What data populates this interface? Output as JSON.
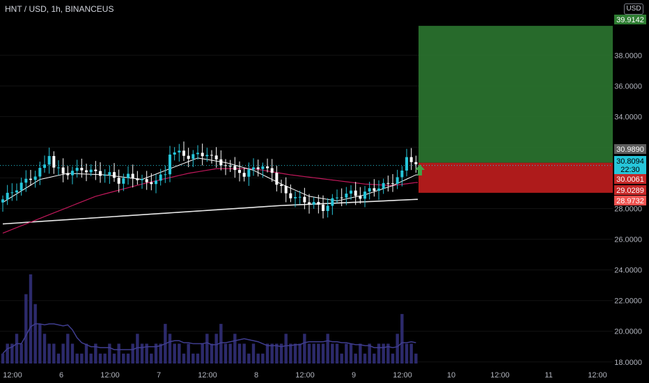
{
  "header": {
    "symbol": "HNT / USD, 1h, BINANCEUS",
    "currency": "USD"
  },
  "colors": {
    "up": "#26c6da",
    "down": "#ffffff",
    "profit": "#2e7d32",
    "loss": "#b71c1c",
    "ma_fast": "#ffffff",
    "ma_mid": "#c2185b",
    "ma_slow": "#e8e8e8",
    "volume": "#2c2a6b",
    "volume_ma": "#3f3d8f"
  },
  "chart_data": {
    "type": "candlestick",
    "yaxis": {
      "ticks": [
        "18.0000",
        "20.0000",
        "22.0000",
        "24.0000",
        "26.0000",
        "28.0000",
        "30.0000",
        "32.0000",
        "34.0000",
        "36.0000",
        "38.0000"
      ],
      "min": 17.9,
      "max": 40.6
    },
    "xaxis": {
      "ticks": [
        "12:00",
        "6",
        "12:00",
        "7",
        "12:00",
        "8",
        "12:00",
        "9",
        "12:00",
        "10",
        "12:00",
        "11",
        "12:00"
      ]
    },
    "price_tags": [
      {
        "value": "39.9142",
        "kind": "target"
      },
      {
        "value": "30.9890",
        "kind": "current"
      },
      {
        "value": "30.8094",
        "kind": "last"
      },
      {
        "value": "22:30",
        "kind": "countdown"
      },
      {
        "value": "30.0061",
        "kind": "stop"
      },
      {
        "value": "29.0289",
        "kind": "stop"
      },
      {
        "value": "28.9732",
        "kind": "stop"
      }
    ],
    "position": {
      "entry": 30.989,
      "target": 39.9142,
      "stop": 29.0289
    },
    "close_path": [
      [
        0,
        28.6
      ],
      [
        4,
        29.6
      ],
      [
        7,
        30.2
      ],
      [
        9,
        30.8
      ],
      [
        10,
        31.6
      ],
      [
        11,
        30.7
      ],
      [
        13,
        30.3
      ],
      [
        15,
        30.4
      ],
      [
        17,
        30.6
      ],
      [
        19,
        30.4
      ],
      [
        21,
        30.3
      ],
      [
        23,
        30.2
      ],
      [
        25,
        29.8
      ],
      [
        27,
        30.1
      ],
      [
        29,
        30.0
      ],
      [
        31,
        29.6
      ],
      [
        33,
        29.9
      ],
      [
        35,
        30.2
      ],
      [
        36,
        31.7
      ],
      [
        38,
        31.6
      ],
      [
        40,
        31.4
      ],
      [
        42,
        31.5
      ],
      [
        44,
        31.6
      ],
      [
        45,
        31.3
      ],
      [
        47,
        31.0
      ],
      [
        49,
        30.6
      ],
      [
        51,
        30.5
      ],
      [
        52,
        30.0
      ],
      [
        54,
        30.8
      ],
      [
        56,
        30.6
      ],
      [
        58,
        30.5
      ],
      [
        59,
        29.6
      ],
      [
        61,
        29.0
      ],
      [
        63,
        28.7
      ],
      [
        65,
        28.5
      ],
      [
        67,
        28.3
      ],
      [
        69,
        28.0
      ],
      [
        71,
        28.5
      ],
      [
        73,
        28.9
      ],
      [
        75,
        29.0
      ],
      [
        77,
        28.8
      ],
      [
        79,
        29.2
      ],
      [
        81,
        29.4
      ],
      [
        83,
        29.6
      ],
      [
        84,
        29.8
      ],
      [
        86,
        30.3
      ],
      [
        87,
        31.4
      ],
      [
        88,
        31.2
      ],
      [
        89,
        30.8
      ]
    ],
    "ma_fast": [
      [
        0,
        28.4
      ],
      [
        8,
        29.9
      ],
      [
        14,
        30.3
      ],
      [
        22,
        30.2
      ],
      [
        30,
        29.9
      ],
      [
        36,
        30.6
      ],
      [
        42,
        31.3
      ],
      [
        48,
        31.0
      ],
      [
        54,
        30.5
      ],
      [
        60,
        29.6
      ],
      [
        66,
        28.8
      ],
      [
        72,
        28.5
      ],
      [
        78,
        28.9
      ],
      [
        84,
        29.5
      ],
      [
        89,
        30.2
      ]
    ],
    "ma_mid": [
      [
        0,
        26.4
      ],
      [
        10,
        27.6
      ],
      [
        20,
        28.8
      ],
      [
        30,
        29.6
      ],
      [
        40,
        30.3
      ],
      [
        46,
        30.6
      ],
      [
        54,
        30.6
      ],
      [
        62,
        30.2
      ],
      [
        70,
        29.9
      ],
      [
        78,
        29.6
      ],
      [
        84,
        29.5
      ],
      [
        89,
        29.7
      ]
    ],
    "ma_slow": [
      [
        0,
        27.0
      ],
      [
        20,
        27.4
      ],
      [
        40,
        27.8
      ],
      [
        60,
        28.2
      ],
      [
        75,
        28.4
      ],
      [
        89,
        28.6
      ]
    ],
    "volume": [
      1,
      2,
      2,
      3,
      2,
      7,
      9,
      6,
      4,
      3,
      2,
      2,
      1,
      2,
      3,
      2,
      1,
      1,
      2,
      1,
      2,
      1,
      1,
      2,
      1,
      2,
      1,
      1,
      2,
      3,
      2,
      2,
      1,
      2,
      2,
      4,
      3,
      2,
      2,
      1,
      2,
      1,
      1,
      2,
      3,
      2,
      3,
      4,
      2,
      2,
      3,
      2,
      2,
      1,
      2,
      1,
      1,
      2,
      2,
      2,
      2,
      3,
      2,
      2,
      2,
      3,
      2,
      2,
      2,
      2,
      3,
      2,
      2,
      1,
      2,
      2,
      1,
      2,
      1,
      2,
      1,
      2,
      2,
      2,
      1,
      3,
      5,
      2,
      2,
      1
    ]
  }
}
